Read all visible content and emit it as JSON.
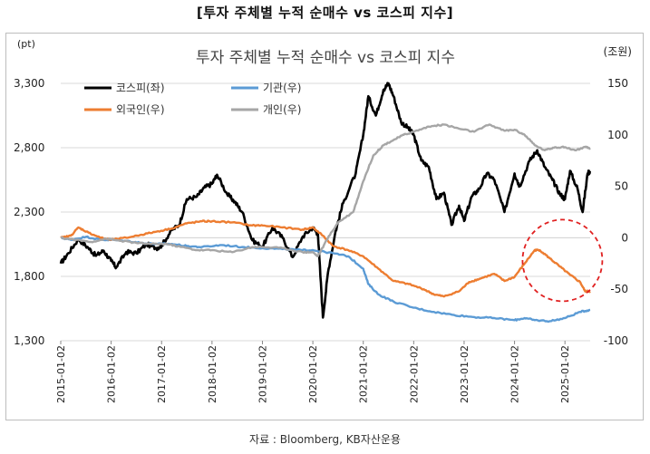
{
  "header": {
    "title": "[투자 주체별 누적 순매수 vs 코스피 지수]"
  },
  "footer": {
    "source": "자료 : Bloomberg, KB자산운용"
  },
  "chart_data": {
    "type": "line",
    "title": "투자 주체별 누적 순매수 vs 코스피 지수",
    "left_axis": {
      "label": "(pt)",
      "range": [
        1300,
        3300
      ],
      "ticks": [
        "1,300",
        "1,800",
        "2,300",
        "2,800",
        "3,300"
      ]
    },
    "right_axis": {
      "label": "(조원)",
      "range": [
        -100,
        150
      ],
      "ticks": [
        "150",
        "100",
        "50",
        "0",
        "-50",
        "-100"
      ]
    },
    "x_ticks": [
      "2015-01-02",
      "2016-01-02",
      "2017-01-02",
      "2018-01-02",
      "2019-01-02",
      "2020-01-02",
      "2021-01-02",
      "2022-01-02",
      "2023-01-02",
      "2024-01-02",
      "2025-01-02"
    ],
    "x_range": [
      2015.0,
      2025.5
    ],
    "legend": [
      "코스피(좌)",
      "기관(우)",
      "외국인(우)",
      "개인(우)"
    ],
    "series": [
      {
        "name": "코스피(좌)",
        "axis": "left",
        "color": "#000000",
        "points": [
          [
            2015.0,
            1900
          ],
          [
            2015.15,
            1980
          ],
          [
            2015.35,
            2090
          ],
          [
            2015.55,
            2020
          ],
          [
            2015.7,
            1960
          ],
          [
            2015.85,
            2000
          ],
          [
            2016.0,
            1920
          ],
          [
            2016.1,
            1870
          ],
          [
            2016.3,
            1990
          ],
          [
            2016.5,
            1980
          ],
          [
            2016.7,
            2050
          ],
          [
            2016.9,
            2020
          ],
          [
            2017.0,
            2040
          ],
          [
            2017.2,
            2160
          ],
          [
            2017.35,
            2200
          ],
          [
            2017.5,
            2400
          ],
          [
            2017.7,
            2420
          ],
          [
            2017.85,
            2490
          ],
          [
            2018.0,
            2520
          ],
          [
            2018.1,
            2590
          ],
          [
            2018.3,
            2440
          ],
          [
            2018.45,
            2380
          ],
          [
            2018.6,
            2300
          ],
          [
            2018.8,
            2080
          ],
          [
            2019.0,
            2030
          ],
          [
            2019.2,
            2180
          ],
          [
            2019.4,
            2100
          ],
          [
            2019.6,
            1950
          ],
          [
            2019.8,
            2110
          ],
          [
            2020.0,
            2180
          ],
          [
            2020.1,
            2130
          ],
          [
            2020.2,
            1480
          ],
          [
            2020.3,
            1830
          ],
          [
            2020.45,
            2150
          ],
          [
            2020.6,
            2370
          ],
          [
            2020.85,
            2600
          ],
          [
            2021.0,
            2900
          ],
          [
            2021.1,
            3200
          ],
          [
            2021.25,
            3050
          ],
          [
            2021.4,
            3250
          ],
          [
            2021.5,
            3300
          ],
          [
            2021.6,
            3200
          ],
          [
            2021.75,
            3000
          ],
          [
            2021.9,
            2950
          ],
          [
            2022.0,
            2900
          ],
          [
            2022.15,
            2700
          ],
          [
            2022.3,
            2650
          ],
          [
            2022.45,
            2400
          ],
          [
            2022.6,
            2450
          ],
          [
            2022.75,
            2200
          ],
          [
            2022.9,
            2350
          ],
          [
            2023.0,
            2230
          ],
          [
            2023.15,
            2420
          ],
          [
            2023.3,
            2480
          ],
          [
            2023.45,
            2600
          ],
          [
            2023.6,
            2550
          ],
          [
            2023.8,
            2300
          ],
          [
            2024.0,
            2600
          ],
          [
            2024.1,
            2500
          ],
          [
            2024.3,
            2700
          ],
          [
            2024.45,
            2780
          ],
          [
            2024.6,
            2650
          ],
          [
            2024.75,
            2550
          ],
          [
            2024.9,
            2440
          ],
          [
            2025.0,
            2400
          ],
          [
            2025.1,
            2620
          ],
          [
            2025.25,
            2480
          ],
          [
            2025.35,
            2300
          ],
          [
            2025.45,
            2600
          ],
          [
            2025.5,
            2620
          ]
        ]
      },
      {
        "name": "기관(우)",
        "axis": "right",
        "color": "#5b9bd5",
        "points": [
          [
            2015.0,
            0
          ],
          [
            2015.2,
            -2
          ],
          [
            2015.5,
            1
          ],
          [
            2015.8,
            -2
          ],
          [
            2016.0,
            -2
          ],
          [
            2016.3,
            -3
          ],
          [
            2016.6,
            -5
          ],
          [
            2016.9,
            -6
          ],
          [
            2017.2,
            -6
          ],
          [
            2017.5,
            -8
          ],
          [
            2017.8,
            -9
          ],
          [
            2018.2,
            -7
          ],
          [
            2018.6,
            -9
          ],
          [
            2019.0,
            -10
          ],
          [
            2019.4,
            -11
          ],
          [
            2019.8,
            -12
          ],
          [
            2020.0,
            -12
          ],
          [
            2020.4,
            -15
          ],
          [
            2020.7,
            -18
          ],
          [
            2021.0,
            -30
          ],
          [
            2021.1,
            -45
          ],
          [
            2021.3,
            -55
          ],
          [
            2021.6,
            -62
          ],
          [
            2022.0,
            -68
          ],
          [
            2022.4,
            -72
          ],
          [
            2022.8,
            -75
          ],
          [
            2023.2,
            -77
          ],
          [
            2023.6,
            -78
          ],
          [
            2024.0,
            -80
          ],
          [
            2024.2,
            -78
          ],
          [
            2024.4,
            -80
          ],
          [
            2024.7,
            -81
          ],
          [
            2025.0,
            -78
          ],
          [
            2025.3,
            -72
          ],
          [
            2025.5,
            -70
          ]
        ]
      },
      {
        "name": "외국인(우)",
        "axis": "right",
        "color": "#ed7d31",
        "points": [
          [
            2015.0,
            0
          ],
          [
            2015.2,
            2
          ],
          [
            2015.35,
            10
          ],
          [
            2015.55,
            5
          ],
          [
            2015.8,
            0
          ],
          [
            2016.0,
            -2
          ],
          [
            2016.3,
            0
          ],
          [
            2016.6,
            3
          ],
          [
            2016.9,
            6
          ],
          [
            2017.2,
            9
          ],
          [
            2017.5,
            14
          ],
          [
            2017.8,
            16
          ],
          [
            2018.0,
            16
          ],
          [
            2018.4,
            15
          ],
          [
            2018.8,
            12
          ],
          [
            2019.0,
            12
          ],
          [
            2019.4,
            10
          ],
          [
            2019.8,
            8
          ],
          [
            2020.0,
            10
          ],
          [
            2020.2,
            2
          ],
          [
            2020.4,
            -8
          ],
          [
            2020.7,
            -12
          ],
          [
            2021.0,
            -18
          ],
          [
            2021.3,
            -30
          ],
          [
            2021.6,
            -42
          ],
          [
            2021.9,
            -45
          ],
          [
            2022.2,
            -50
          ],
          [
            2022.4,
            -55
          ],
          [
            2022.6,
            -57
          ],
          [
            2022.9,
            -52
          ],
          [
            2023.1,
            -43
          ],
          [
            2023.3,
            -40
          ],
          [
            2023.6,
            -35
          ],
          [
            2023.8,
            -42
          ],
          [
            2024.0,
            -38
          ],
          [
            2024.2,
            -25
          ],
          [
            2024.4,
            -12
          ],
          [
            2024.5,
            -12
          ],
          [
            2024.7,
            -20
          ],
          [
            2024.9,
            -28
          ],
          [
            2025.1,
            -36
          ],
          [
            2025.3,
            -43
          ],
          [
            2025.4,
            -52
          ],
          [
            2025.5,
            -52
          ]
        ]
      },
      {
        "name": "개인(우)",
        "axis": "right",
        "color": "#a6a6a6",
        "points": [
          [
            2015.0,
            0
          ],
          [
            2015.3,
            -2
          ],
          [
            2015.6,
            -4
          ],
          [
            2015.9,
            -1
          ],
          [
            2016.2,
            -3
          ],
          [
            2016.5,
            -5
          ],
          [
            2016.8,
            -6
          ],
          [
            2017.1,
            -6
          ],
          [
            2017.4,
            -9
          ],
          [
            2017.7,
            -12
          ],
          [
            2018.0,
            -12
          ],
          [
            2018.4,
            -14
          ],
          [
            2018.8,
            -9
          ],
          [
            2019.0,
            -9
          ],
          [
            2019.4,
            -10
          ],
          [
            2019.8,
            -14
          ],
          [
            2020.0,
            -14
          ],
          [
            2020.1,
            -18
          ],
          [
            2020.3,
            0
          ],
          [
            2020.5,
            15
          ],
          [
            2020.8,
            25
          ],
          [
            2021.0,
            55
          ],
          [
            2021.2,
            80
          ],
          [
            2021.4,
            90
          ],
          [
            2021.6,
            95
          ],
          [
            2021.8,
            100
          ],
          [
            2022.0,
            103
          ],
          [
            2022.3,
            108
          ],
          [
            2022.6,
            110
          ],
          [
            2022.9,
            106
          ],
          [
            2023.2,
            103
          ],
          [
            2023.5,
            110
          ],
          [
            2023.8,
            104
          ],
          [
            2024.0,
            105
          ],
          [
            2024.2,
            100
          ],
          [
            2024.4,
            90
          ],
          [
            2024.6,
            85
          ],
          [
            2024.8,
            88
          ],
          [
            2025.0,
            88
          ],
          [
            2025.2,
            85
          ],
          [
            2025.4,
            88
          ],
          [
            2025.5,
            87
          ]
        ]
      }
    ]
  }
}
